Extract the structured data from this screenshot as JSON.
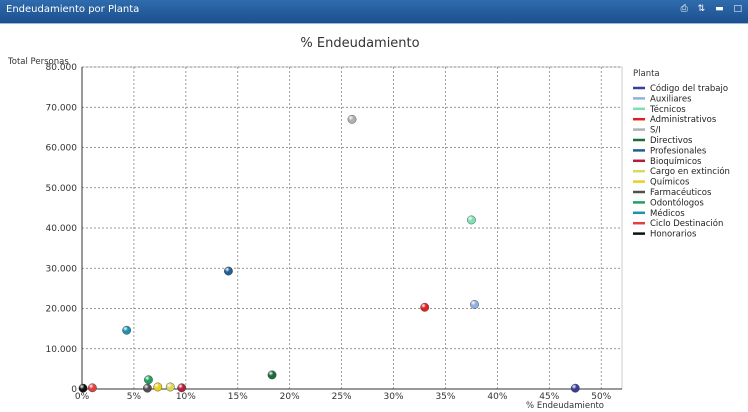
{
  "window": {
    "title": "Endeudamiento por Planta",
    "controls": [
      "print-icon",
      "restore-icon",
      "minimize-icon",
      "maximize-icon"
    ]
  },
  "chart_data": {
    "type": "scatter",
    "title": "% Endeudamiento",
    "xlabel": "% Endeudamiento",
    "ylabel": "Total Personas",
    "xlim": [
      0,
      52
    ],
    "ylim": [
      0,
      80000
    ],
    "x_ticks": [
      "0%",
      "5%",
      "10%",
      "15%",
      "20%",
      "25%",
      "30%",
      "35%",
      "40%",
      "45%",
      "50%"
    ],
    "x_tick_values": [
      0,
      5,
      10,
      15,
      20,
      25,
      30,
      35,
      40,
      45,
      50
    ],
    "y_ticks": [
      "0",
      "10.000",
      "20.000",
      "30.000",
      "40.000",
      "50.000",
      "60.000",
      "70.000",
      "80.000"
    ],
    "y_tick_values": [
      0,
      10000,
      20000,
      30000,
      40000,
      50000,
      60000,
      70000,
      80000
    ],
    "grid": true,
    "legend_title": "Planta",
    "legend_position": "right",
    "series": [
      {
        "name": "Código del trabajo",
        "color": "#3b3b9c",
        "points": [
          [
            47.5,
            200
          ]
        ]
      },
      {
        "name": "Auxiliares",
        "color": "#8fb0e0",
        "points": [
          [
            37.8,
            21000
          ]
        ]
      },
      {
        "name": "Técnicos",
        "color": "#7ee0b0",
        "points": [
          [
            37.5,
            42000
          ]
        ]
      },
      {
        "name": "Administrativos",
        "color": "#e02020",
        "points": [
          [
            33,
            20300
          ]
        ]
      },
      {
        "name": "S/I",
        "color": "#b0b0b0",
        "points": [
          [
            26,
            67000
          ]
        ]
      },
      {
        "name": "Directivos",
        "color": "#1d6b3a",
        "points": [
          [
            18.3,
            3500
          ]
        ]
      },
      {
        "name": "Profesionales",
        "color": "#1f5f96",
        "points": [
          [
            14.1,
            29300
          ]
        ]
      },
      {
        "name": "Bioquímicos",
        "color": "#b0203a",
        "points": [
          [
            9.6,
            300
          ]
        ]
      },
      {
        "name": "Cargo en extinción",
        "color": "#d8d860",
        "points": [
          [
            8.5,
            500
          ]
        ]
      },
      {
        "name": "Químicos",
        "color": "#e8d020",
        "points": [
          [
            7.3,
            500
          ]
        ]
      },
      {
        "name": "Farmacéuticos",
        "color": "#505050",
        "points": [
          [
            6.3,
            200
          ]
        ]
      },
      {
        "name": "Odontólogos",
        "color": "#20a060",
        "points": [
          [
            6.4,
            2300
          ]
        ]
      },
      {
        "name": "Médicos",
        "color": "#2090b0",
        "points": [
          [
            4.3,
            14600
          ]
        ]
      },
      {
        "name": "Ciclo Destinación",
        "color": "#e04040",
        "points": [
          [
            1,
            300
          ]
        ]
      },
      {
        "name": "Honorarios",
        "color": "#111111",
        "points": [
          [
            0.1,
            200
          ]
        ]
      }
    ]
  }
}
